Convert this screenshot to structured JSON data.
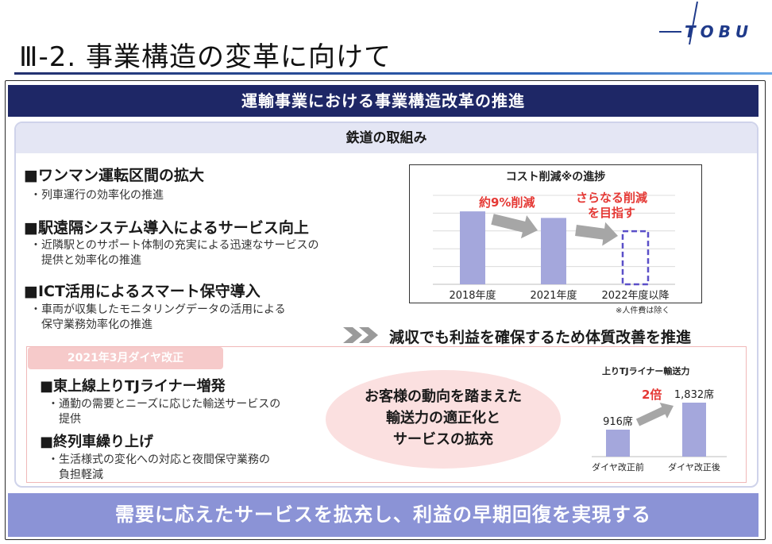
{
  "brand": {
    "logo_text": "TOBU"
  },
  "page": {
    "title": "Ⅲ-2. 事業構造の変革に向けて"
  },
  "panel": {
    "header": "運輸事業における事業構造改革の推進"
  },
  "railway": {
    "header": "鉄道の取組み",
    "items": [
      {
        "head": "■ワンマン運転区間の拡大",
        "sub": [
          "・列車運行の効率化の推進"
        ]
      },
      {
        "head": "■駅遠隔システム導入によるサービス向上",
        "sub": [
          "・近隣駅とのサポート体制の充実による迅速なサービスの",
          "　提供と効率化の推進"
        ]
      },
      {
        "head": "■ICT活用によるスマート保守導入",
        "sub": [
          "・車両が収集したモニタリングデータの活用による",
          "　保守業務効率化の推進"
        ]
      }
    ]
  },
  "cost_chart": {
    "title": "コスト削減※の進捗",
    "annotation_1": "約9%削減",
    "annotation_2_line1": "さらなる削減",
    "annotation_2_line2": "を目指す",
    "footnote": "※人件費は除く"
  },
  "conclusion": "減収でも利益を確保するため体質改善を推進",
  "revision": {
    "tab": "2021年3月ダイヤ改正",
    "items": [
      {
        "head": "■東上線上りTJライナー増発",
        "sub": [
          "・通勤の需要とニーズに応じた輸送サービスの",
          "　提供"
        ]
      },
      {
        "head": "■終列車繰り上げ",
        "sub": [
          "・生活様式の変化への対応と夜間保守業務の",
          "　負担軽減"
        ]
      }
    ],
    "oval_lines": [
      "お客様の動向を踏まえた",
      "輸送力の適正化と",
      "サービスの拡充"
    ]
  },
  "tj_chart": {
    "title": "上りTJライナー輸送力",
    "multiplier": "2倍"
  },
  "bottom_banner": "需要に応えたサービスを拡充し、利益の早期回復を実現する",
  "colors": {
    "navy": "#1e2766",
    "bar": "#a4a7dc",
    "dashed_bar": "#5a4fc8",
    "accent_red": "#e53935",
    "arrow_gray": "#a6a6a6",
    "banner": "#8b93d6"
  },
  "chart_data": [
    {
      "type": "bar",
      "title": "コスト削減※の進捗",
      "categories": [
        "2018年度",
        "2021年度",
        "2022年度以降"
      ],
      "values": [
        100,
        91,
        null
      ],
      "value_kind": "relative index (2018年度 = 100)",
      "notes": [
        "約9%削減",
        "さらなる削減を目指す",
        "2022年度以降 is a dashed target bar"
      ],
      "xlabel": "",
      "ylabel": "",
      "grid": "horizontal lines"
    },
    {
      "type": "bar",
      "title": "上りTJライナー輸送力",
      "categories": [
        "ダイヤ改正前",
        "ダイヤ改正後"
      ],
      "values": [
        916,
        1832
      ],
      "value_labels": [
        "916席",
        "1,832席"
      ],
      "annotation": "2倍",
      "xlabel": "",
      "ylabel": ""
    }
  ]
}
